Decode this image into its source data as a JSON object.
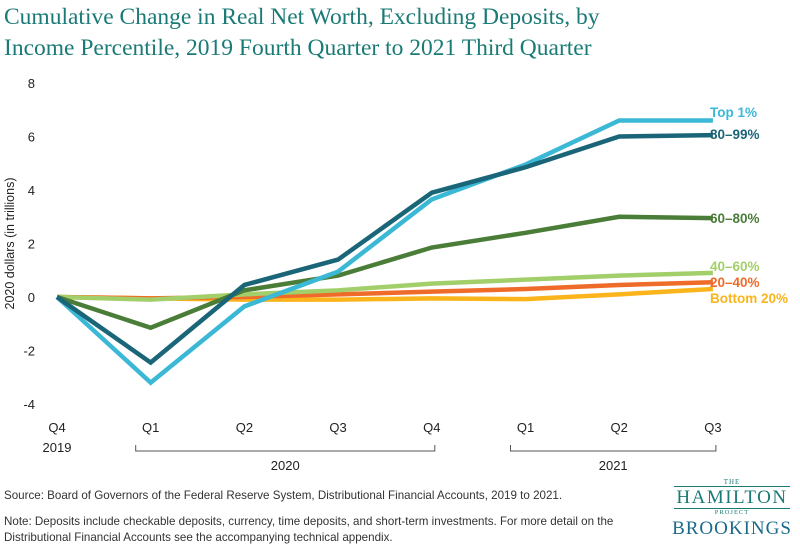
{
  "chart_data": {
    "type": "line",
    "title_line1": "Cumulative Change in Real Net Worth, Excluding Deposits, by",
    "title_line2": "Income Percentile, 2019 Fourth Quarter to 2021 Third Quarter",
    "ylabel": "2020 dollars (in trillions)",
    "ylim": [
      -4,
      8
    ],
    "yticks": [
      -4,
      -2,
      0,
      2,
      4,
      6,
      8
    ],
    "ytick_labels": [
      "-4",
      "-2",
      "0",
      "2",
      "4",
      "6",
      "8"
    ],
    "categories": [
      "Q4 2019",
      "Q1 2020",
      "Q2 2020",
      "Q3 2020",
      "Q4 2020",
      "Q1 2021",
      "Q2 2021",
      "Q3 2021"
    ],
    "x_tick_labels": [
      "Q4",
      "Q1",
      "Q2",
      "Q3",
      "Q4",
      "Q1",
      "Q2",
      "Q3"
    ],
    "first_year_label": "2019",
    "year_groups": [
      {
        "label": "2020",
        "start": 1,
        "end": 4
      },
      {
        "label": "2021",
        "start": 5,
        "end": 7
      }
    ],
    "series": [
      {
        "name": "Bottom 20%",
        "color": "#fbb41c",
        "values": [
          0,
          -0.05,
          -0.1,
          -0.1,
          -0.05,
          -0.08,
          0.1,
          0.3
        ]
      },
      {
        "name": "20–40%",
        "color": "#ef6b2a",
        "values": [
          0,
          -0.05,
          0.0,
          0.1,
          0.2,
          0.3,
          0.45,
          0.55
        ]
      },
      {
        "name": "40–60%",
        "color": "#a3cf6b",
        "values": [
          0,
          -0.1,
          0.1,
          0.25,
          0.5,
          0.65,
          0.8,
          0.9
        ]
      },
      {
        "name": "60–80%",
        "color": "#4a7d37",
        "values": [
          0,
          -1.15,
          0.25,
          0.8,
          1.85,
          2.4,
          3.0,
          2.95
        ]
      },
      {
        "name": "Top 1%",
        "color": "#3bb8d6",
        "values": [
          0,
          -3.2,
          -0.35,
          0.95,
          3.65,
          4.95,
          6.6,
          6.6
        ]
      },
      {
        "name": "80–99%",
        "color": "#1a6678",
        "values": [
          0,
          -2.45,
          0.45,
          1.4,
          3.9,
          4.85,
          6.0,
          6.05
        ]
      }
    ],
    "legend_placement": "right, at line ends"
  },
  "footer": {
    "source": "Source: Board of Governors of the Federal Reserve System, Distributional Financial Accounts, 2019 to 2021.",
    "note": "Note: Deposits include checkable deposits, currency, time deposits, and short-term investments. For more detail on the Distributional Financial Accounts see the accompanying technical appendix."
  },
  "logo": {
    "the": "THE",
    "hamilton": "HAMILTON",
    "project": "PROJECT",
    "brookings": "BROOKINGS"
  }
}
